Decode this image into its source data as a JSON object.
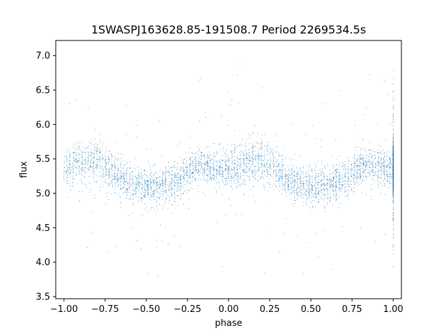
{
  "chart_data": {
    "type": "scatter",
    "title": "1SWASPJ163628.85-191508.7 Period 2269534.5s",
    "xlabel": "phase",
    "ylabel": "flux",
    "xlim": [
      -1.05,
      1.05
    ],
    "ylim": [
      3.47,
      7.22
    ],
    "xticks": [
      -1.0,
      -0.75,
      -0.5,
      -0.25,
      0.0,
      0.25,
      0.5,
      0.75,
      1.0
    ],
    "xtick_labels": [
      "−1.00",
      "−0.75",
      "−0.50",
      "−0.25",
      "0.00",
      "0.25",
      "0.50",
      "0.75",
      "1.00"
    ],
    "yticks": [
      3.5,
      4.0,
      4.5,
      5.0,
      5.5,
      6.0,
      6.5,
      7.0
    ],
    "ytick_labels": [
      "3.5",
      "4.0",
      "4.5",
      "5.0",
      "5.5",
      "6.0",
      "6.5",
      "7.0"
    ],
    "grid": false,
    "marker_color": "#1f77b4",
    "series": [
      {
        "profile": {
          "phase": [
            -1.0,
            -0.9,
            -0.8,
            -0.7,
            -0.6,
            -0.5,
            -0.4,
            -0.3,
            -0.2,
            -0.1,
            0.0,
            0.1,
            0.2,
            0.3,
            0.4,
            0.5,
            0.6,
            0.7,
            0.8,
            0.9,
            1.0
          ],
          "median_flux": [
            5.35,
            5.45,
            5.48,
            5.3,
            5.15,
            5.1,
            5.12,
            5.2,
            5.38,
            5.38,
            5.35,
            5.45,
            5.48,
            5.3,
            5.15,
            5.1,
            5.12,
            5.2,
            5.38,
            5.38,
            5.35
          ],
          "scatter": [
            0.25,
            0.3,
            0.32,
            0.28,
            0.25,
            0.26,
            0.27,
            0.27,
            0.25,
            0.24,
            0.25,
            0.3,
            0.32,
            0.28,
            0.25,
            0.26,
            0.27,
            0.27,
            0.25,
            0.24,
            0.25
          ]
        },
        "n_points": 9000,
        "flux_min": 3.6,
        "flux_max": 7.05
      }
    ]
  }
}
